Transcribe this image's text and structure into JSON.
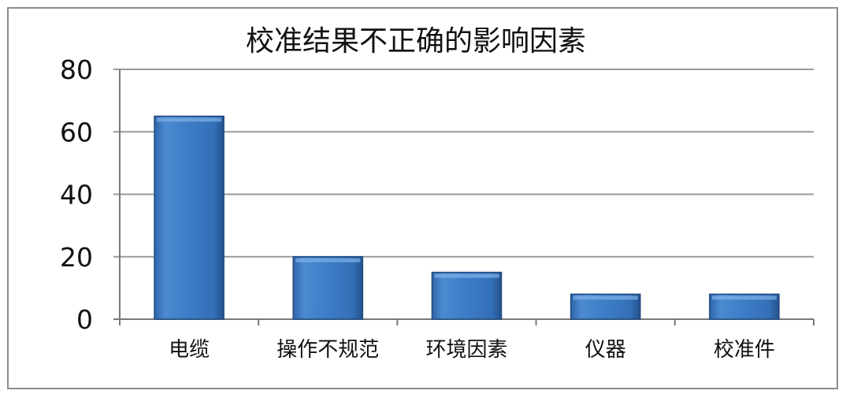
{
  "chart_data": {
    "type": "bar",
    "title": "校准结果不正确的影响因素",
    "categories": [
      "电缆",
      "操作不规范",
      "环境因素",
      "仪器",
      "校准件"
    ],
    "values": [
      65,
      20,
      15,
      8,
      8
    ],
    "xlabel": "",
    "ylabel": "",
    "ylim": [
      0,
      80
    ],
    "yticks": [
      0,
      20,
      40,
      60,
      80
    ],
    "grid": true,
    "legend": "none",
    "bar_color": "#3a78c0"
  }
}
